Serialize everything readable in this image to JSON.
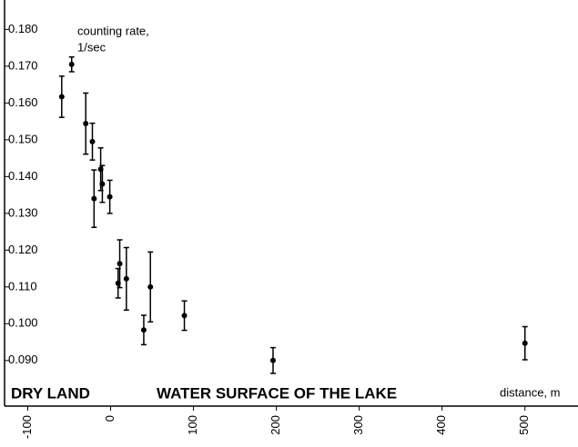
{
  "chart_data": {
    "type": "scatter",
    "ylabel": [
      "counting rate,",
      "1/sec"
    ],
    "xlabel": "distance, m",
    "annotations": [
      "DRY LAND",
      "WATER SURFACE OF THE LAKE"
    ],
    "x": [
      -59,
      -47,
      -30,
      -22,
      -20,
      -12,
      -10,
      -1,
      9,
      11,
      19,
      40,
      48,
      89,
      196,
      500
    ],
    "values": [
      0.1617,
      0.1705,
      0.1544,
      0.1495,
      0.134,
      0.142,
      0.138,
      0.1345,
      0.111,
      0.1163,
      0.1122,
      0.0983,
      0.11,
      0.1022,
      0.09,
      0.0947
    ],
    "errors": [
      0.0056,
      0.002,
      0.0083,
      0.005,
      0.0078,
      0.0058,
      0.005,
      0.0045,
      0.004,
      0.0065,
      0.0085,
      0.004,
      0.0095,
      0.004,
      0.0035,
      0.0045
    ],
    "color": "#000000",
    "xlim": [
      -128,
      564
    ],
    "ylim": [
      0.0776,
      0.188
    ],
    "xticks": [
      -100,
      0,
      100,
      200,
      300,
      400,
      500
    ],
    "yticks": [
      {
        "value": 0.09,
        "label": "0.090"
      },
      {
        "value": 0.1,
        "label": "0.100"
      },
      {
        "value": 0.11,
        "label": "0.110"
      },
      {
        "value": 0.12,
        "label": "0.120"
      },
      {
        "value": 0.13,
        "label": "0.130"
      },
      {
        "value": 0.14,
        "label": "0.140"
      },
      {
        "value": 0.15,
        "label": "0.150"
      },
      {
        "value": 0.16,
        "label": "0.160"
      },
      {
        "value": 0.17,
        "label": "0.170"
      },
      {
        "value": 0.18,
        "label": "0.180"
      }
    ]
  }
}
